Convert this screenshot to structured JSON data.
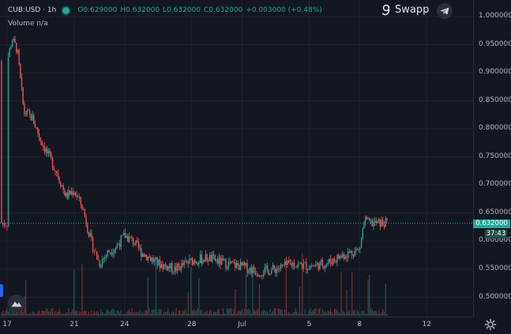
{
  "legend": {
    "symbol": "CUB:USD · 1h",
    "open": "O0.629000",
    "high": "H0.632000",
    "low": "L0.632000",
    "close": "C0.632000",
    "change": "+0.003000 (+0.48%)"
  },
  "volume_legend": "Volume  n/a",
  "brand": {
    "name": "Swapp",
    "logo_icon": "swapp-logo-icon",
    "telegram_icon": "telegram-icon"
  },
  "price_axis": [
    "1.000000",
    "0.950000",
    "0.900000",
    "0.850000",
    "0.800000",
    "0.750000",
    "0.700000",
    "0.650000",
    "0.600000",
    "0.550000",
    "0.500000"
  ],
  "time_axis": [
    "17",
    "21",
    "24",
    "28",
    "Jul",
    "5",
    "8",
    "12"
  ],
  "current_price": "0.632000",
  "countdown": "37:43",
  "colors": {
    "up": "#26a69a",
    "down": "#ef5350",
    "background": "#131722",
    "grid": "#1e222d"
  },
  "chart_data": {
    "type": "candlestick",
    "interval": "1h",
    "ylim": [
      0.48,
      1.0
    ],
    "x_ticks": [
      "17",
      "21",
      "24",
      "28",
      "Jul",
      "5",
      "8",
      "12"
    ],
    "close_series": [
      [
        "Jun 17",
        0.92
      ],
      [
        "Jun 17.3",
        0.96
      ],
      [
        "Jun 17.6",
        0.94
      ],
      [
        "Jun 18",
        0.83
      ],
      [
        "Jun 18.5",
        0.82
      ],
      [
        "Jun 19",
        0.78
      ],
      [
        "Jun 19.5",
        0.75
      ],
      [
        "Jun 20",
        0.72
      ],
      [
        "Jun 20.5",
        0.68
      ],
      [
        "Jun 21",
        0.69
      ],
      [
        "Jun 21.5",
        0.66
      ],
      [
        "Jun 22",
        0.6
      ],
      [
        "Jun 22.5",
        0.56
      ],
      [
        "Jun 23",
        0.58
      ],
      [
        "Jun 23.5",
        0.59
      ],
      [
        "Jun 24",
        0.61
      ],
      [
        "Jun 24.5",
        0.6
      ],
      [
        "Jun 25",
        0.58
      ],
      [
        "Jun 26",
        0.56
      ],
      [
        "Jun 27",
        0.55
      ],
      [
        "Jun 28",
        0.565
      ],
      [
        "Jun 29",
        0.57
      ],
      [
        "Jun 30",
        0.56
      ],
      [
        "Jul 1",
        0.555
      ],
      [
        "Jul 2",
        0.545
      ],
      [
        "Jul 3",
        0.55
      ],
      [
        "Jul 4",
        0.56
      ],
      [
        "Jul 5",
        0.555
      ],
      [
        "Jul 6",
        0.56
      ],
      [
        "Jul 7",
        0.575
      ],
      [
        "Jul 8",
        0.585
      ],
      [
        "Jul 8.3",
        0.64
      ],
      [
        "Jul 8.5",
        0.632
      ]
    ]
  }
}
